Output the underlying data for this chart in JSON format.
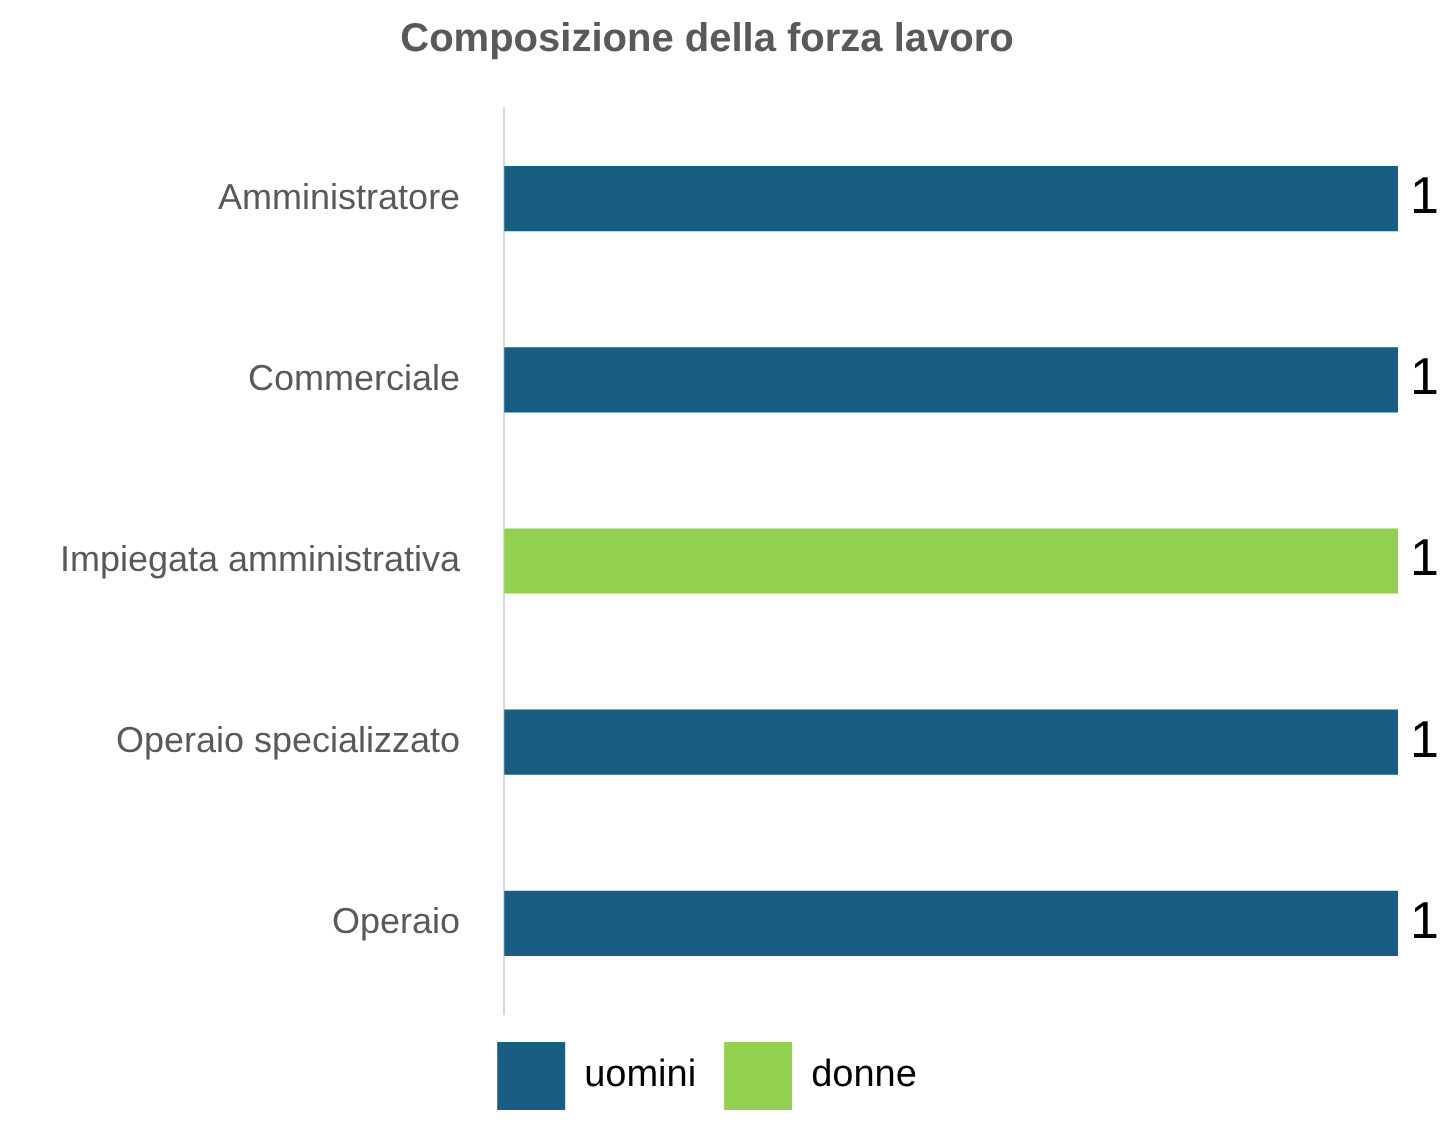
{
  "chart_data": {
    "type": "bar",
    "orientation": "horizontal",
    "stacked": true,
    "title": "Composizione della forza lavoro",
    "categories": [
      "Amministratore",
      "Commerciale",
      "Impiegata amministrativa",
      "Operaio specializzato",
      "Operaio"
    ],
    "series": [
      {
        "name": "uomini",
        "color": "#175e82",
        "values": [
          1,
          1,
          null,
          1,
          1
        ]
      },
      {
        "name": "donne",
        "color": "#92d050",
        "values": [
          null,
          null,
          1,
          null,
          null
        ]
      }
    ],
    "tick_labels": "y",
    "data_labels": true,
    "grid": false,
    "legend": "bottom"
  }
}
